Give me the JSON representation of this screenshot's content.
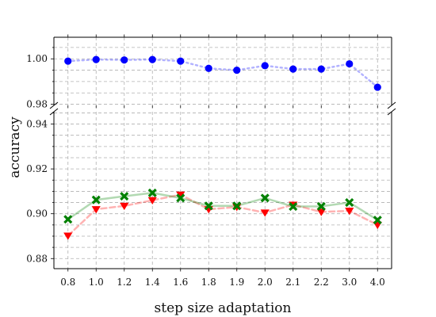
{
  "chart_data": {
    "type": "line",
    "xlabel": "step size adaptation",
    "ylabel": "accuracy",
    "categories": [
      "0.8",
      "1.0",
      "1.2",
      "1.4",
      "1.6",
      "1.8",
      "1.9",
      "2.0",
      "2.1",
      "2.2",
      "3.0",
      "4.0"
    ],
    "broken_y_axis": true,
    "upper_panel": {
      "ylim": [
        0.9795,
        1.0095
      ],
      "yticks": [
        "0.98",
        "1.00"
      ],
      "series": [
        {
          "color": "#0000ff",
          "marker": "circle",
          "linestyle": "dotted",
          "values": [
            0.999,
            0.9997,
            0.9995,
            0.9997,
            0.999,
            0.9958,
            0.995,
            0.997,
            0.9955,
            0.9955,
            0.9978,
            0.9875
          ]
        }
      ]
    },
    "lower_panel": {
      "ylim": [
        0.8755,
        0.9455
      ],
      "yticks": [
        "0.88",
        "0.90",
        "0.92",
        "0.94"
      ],
      "series": [
        {
          "color": "#008000",
          "marker": "x-filled",
          "linestyle": "solid",
          "values": [
            0.8975,
            0.9062,
            0.9078,
            0.9093,
            0.907,
            0.9035,
            0.9035,
            0.907,
            0.9032,
            0.9033,
            0.905,
            0.8972
          ]
        },
        {
          "color": "#ff0000",
          "marker": "triangle-down",
          "linestyle": "dashed",
          "values": [
            0.8902,
            0.902,
            0.9035,
            0.906,
            0.9085,
            0.902,
            0.903,
            0.9005,
            0.904,
            0.9008,
            0.9013,
            0.895
          ]
        }
      ]
    },
    "grid": true
  }
}
